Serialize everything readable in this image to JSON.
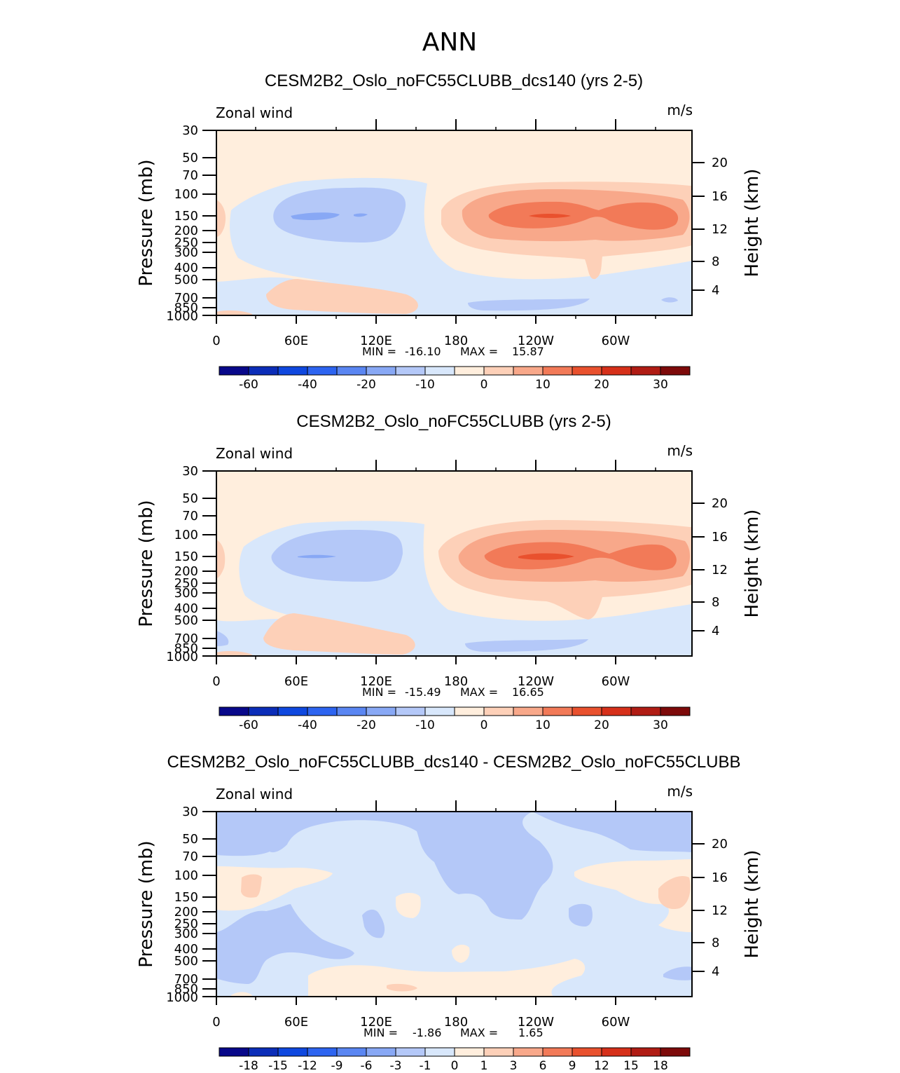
{
  "page_title": "ANN",
  "colors": {
    "cb1": [
      "#08088a",
      "#0b2db8",
      "#0f48df",
      "#2d64f0",
      "#5a86f2",
      "#88a8f5",
      "#b4c8f8",
      "#d8e7fb",
      "#ffeedd",
      "#fdd0b8",
      "#f8a88a",
      "#f27a58",
      "#e9512e",
      "#d6301a",
      "#b01c14",
      "#7d0a0a"
    ],
    "cb2": [
      "#08088a",
      "#0b2db8",
      "#0f48df",
      "#2d64f0",
      "#5a86f2",
      "#88a8f5",
      "#b4c8f8",
      "#d8e7fb",
      "#ffeedd",
      "#fdd0b8",
      "#f8a88a",
      "#f27a58",
      "#e9512e",
      "#d6301a",
      "#b01c14",
      "#7d0a0a"
    ]
  },
  "chart_data": [
    {
      "type": "contour",
      "title": "CESM2B2_Oslo_noFC55CLUBB_dcs140 (yrs 2-5)",
      "left_label": "Zonal wind",
      "units": "m/s",
      "ylabel": "Pressure (mb)",
      "y2label": "Height (km)",
      "x_ticks": [
        "0",
        "60E",
        "120E",
        "180",
        "120W",
        "60W"
      ],
      "y_ticks": [
        "30",
        "50",
        "70",
        "100",
        "150",
        "200",
        "250",
        "300",
        "400",
        "500",
        "700",
        "850",
        "1000"
      ],
      "y2_ticks": [
        "20",
        "16",
        "12",
        "8",
        "4"
      ],
      "min_label": "MIN =",
      "min_value": "-16.10",
      "max_label": "MAX =",
      "max_value": "15.87",
      "colorbar_labels": [
        "-60",
        "-40",
        "-20",
        "-10",
        "0",
        "10",
        "20",
        "30"
      ]
    },
    {
      "type": "contour",
      "title": "CESM2B2_Oslo_noFC55CLUBB (yrs 2-5)",
      "left_label": "Zonal wind",
      "units": "m/s",
      "ylabel": "Pressure (mb)",
      "y2label": "Height (km)",
      "x_ticks": [
        "0",
        "60E",
        "120E",
        "180",
        "120W",
        "60W"
      ],
      "y_ticks": [
        "30",
        "50",
        "70",
        "100",
        "150",
        "200",
        "250",
        "300",
        "400",
        "500",
        "700",
        "850",
        "1000"
      ],
      "y2_ticks": [
        "20",
        "16",
        "12",
        "8",
        "4"
      ],
      "min_label": "MIN =",
      "min_value": "-15.49",
      "max_label": "MAX =",
      "max_value": "16.65",
      "colorbar_labels": [
        "-60",
        "-40",
        "-20",
        "-10",
        "0",
        "10",
        "20",
        "30"
      ]
    },
    {
      "type": "contour",
      "title": "CESM2B2_Oslo_noFC55CLUBB_dcs140 - CESM2B2_Oslo_noFC55CLUBB",
      "left_label": "Zonal wind",
      "units": "m/s",
      "ylabel": "Pressure (mb)",
      "y2label": "Height (km)",
      "x_ticks": [
        "0",
        "60E",
        "120E",
        "180",
        "120W",
        "60W"
      ],
      "y_ticks": [
        "30",
        "50",
        "70",
        "100",
        "150",
        "200",
        "250",
        "300",
        "400",
        "500",
        "700",
        "850",
        "1000"
      ],
      "y2_ticks": [
        "20",
        "16",
        "12",
        "8",
        "4"
      ],
      "min_label": "MIN =",
      "min_value": "-1.86",
      "max_label": "MAX =",
      "max_value": "1.65",
      "colorbar_labels": [
        "-18",
        "-15",
        "-12",
        "-9",
        "-6",
        "-3",
        "-1",
        "0",
        "1",
        "3",
        "6",
        "9",
        "12",
        "15",
        "18"
      ]
    }
  ]
}
